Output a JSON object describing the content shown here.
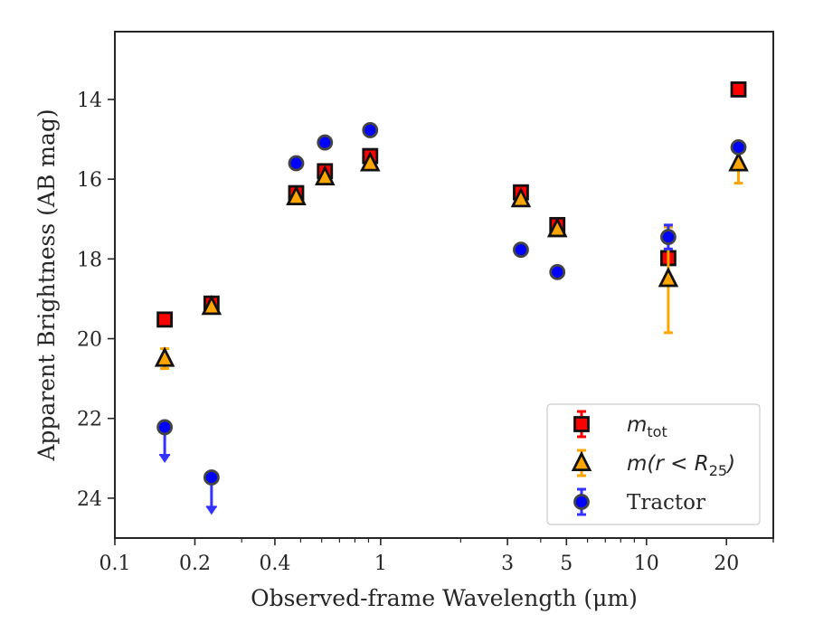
{
  "chart_data": {
    "type": "scatter",
    "xlabel": "Observed-frame Wavelength (μm)",
    "ylabel": "Apparent Brightness (AB mag)",
    "x_scale": "log",
    "y_inverted": true,
    "xlim": [
      0.1,
      30
    ],
    "ylim": [
      25,
      12.3
    ],
    "x_ticks": [
      {
        "value": 0.1,
        "label": "0.1"
      },
      {
        "value": 0.2,
        "label": "0.2"
      },
      {
        "value": 0.4,
        "label": "0.4"
      },
      {
        "value": 1,
        "label": "1"
      },
      {
        "value": 3,
        "label": "3"
      },
      {
        "value": 5,
        "label": "5"
      },
      {
        "value": 10,
        "label": "10"
      },
      {
        "value": 20,
        "label": "20"
      }
    ],
    "y_ticks": [
      {
        "value": 14,
        "label": "14"
      },
      {
        "value": 16,
        "label": "16"
      },
      {
        "value": 18,
        "label": "18"
      },
      {
        "value": 20,
        "label": "20"
      },
      {
        "value": 22,
        "label": "22"
      },
      {
        "value": 24,
        "label": "24"
      }
    ],
    "grid": false,
    "legend_position": "bottom-right",
    "series": [
      {
        "name": "m_tot",
        "legend_main": "m",
        "legend_sub": "tot",
        "marker": "square",
        "color": "#ff0000",
        "error_color": "#ff0000",
        "points": [
          {
            "x": 0.154,
            "y": 19.52,
            "err": 0.05
          },
          {
            "x": 0.231,
            "y": 19.12,
            "err": 0.05
          },
          {
            "x": 0.481,
            "y": 16.35,
            "err": 0.05
          },
          {
            "x": 0.617,
            "y": 15.8,
            "err": 0.05
          },
          {
            "x": 0.913,
            "y": 15.42,
            "err": 0.05
          },
          {
            "x": 3.37,
            "y": 16.33,
            "err": 0.05
          },
          {
            "x": 4.62,
            "y": 17.15,
            "err": 0.1
          },
          {
            "x": 12.08,
            "y": 17.98,
            "err": 0.1
          },
          {
            "x": 22.19,
            "y": 13.75,
            "err": 0.05
          }
        ]
      },
      {
        "name": "m(r < R25)",
        "legend_main": "m(r < R",
        "legend_sub": "25",
        "legend_tail": ")",
        "marker": "triangle",
        "color": "#ffa500",
        "error_color": "#ffa500",
        "points": [
          {
            "x": 0.154,
            "y": 20.5,
            "err_low": 0.25,
            "err_high": 0.25
          },
          {
            "x": 0.231,
            "y": 19.2,
            "err_low": 0.05,
            "err_high": 0.05
          },
          {
            "x": 0.481,
            "y": 16.45,
            "err_low": 0.05,
            "err_high": 0.05
          },
          {
            "x": 0.617,
            "y": 15.95,
            "err_low": 0.05,
            "err_high": 0.05
          },
          {
            "x": 0.913,
            "y": 15.6,
            "err_low": 0.05,
            "err_high": 0.05
          },
          {
            "x": 3.37,
            "y": 16.5,
            "err_low": 0.05,
            "err_high": 0.05
          },
          {
            "x": 4.62,
            "y": 17.25,
            "err_low": 0.05,
            "err_high": 0.05
          },
          {
            "x": 12.08,
            "y": 18.5,
            "err_low": 1.3,
            "err_high": 1.35
          },
          {
            "x": 22.19,
            "y": 15.6,
            "err_low": 0.3,
            "err_high": 0.5
          }
        ]
      },
      {
        "name": "Tractor",
        "legend_main": "Tractor",
        "marker": "circle",
        "color": "#0000ff",
        "error_color": "#3333ff",
        "points": [
          {
            "x": 0.154,
            "y": 22.22,
            "upper_limit": true,
            "arrow_to": 23.05
          },
          {
            "x": 0.231,
            "y": 23.48,
            "upper_limit": true,
            "arrow_to": 24.35
          },
          {
            "x": 0.481,
            "y": 15.6,
            "err": 0.05
          },
          {
            "x": 0.617,
            "y": 15.08,
            "err": 0.05
          },
          {
            "x": 0.913,
            "y": 14.77,
            "err": 0.05
          },
          {
            "x": 3.37,
            "y": 17.77,
            "err": 0.05
          },
          {
            "x": 4.62,
            "y": 18.33,
            "err": 0.05
          },
          {
            "x": 12.08,
            "y": 17.45,
            "err": 0.3
          },
          {
            "x": 22.19,
            "y": 15.2,
            "err": 0.05
          }
        ]
      }
    ]
  }
}
